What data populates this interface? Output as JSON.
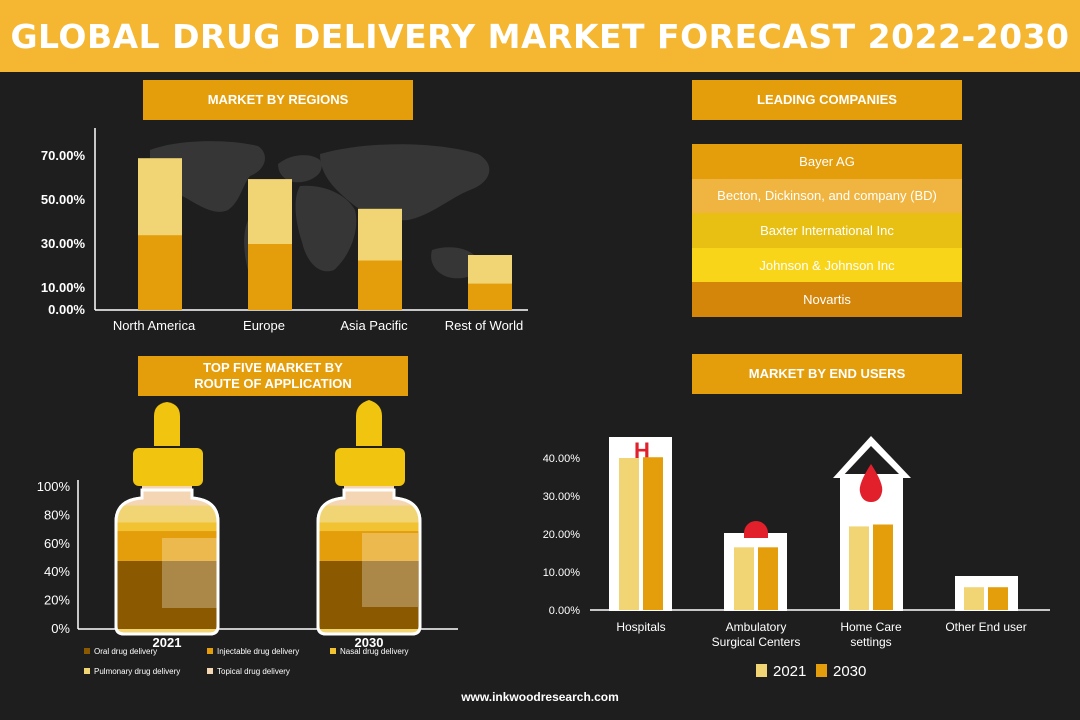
{
  "title": "GLOBAL DRUG DELIVERY MARKET FORECAST 2022-2030",
  "sections": {
    "regions": "MARKET BY REGIONS",
    "companies": "LEADING COMPANIES",
    "route_line1": "TOP FIVE MARKET BY",
    "route_line2": "ROUTE OF APPLICATION",
    "end_users": "MARKET BY END USERS"
  },
  "companies": [
    "Bayer AG",
    "Becton, Dickinson, and company (BD)",
    "Baxter International Inc",
    "Johnson & Johnson Inc",
    "Novartis"
  ],
  "colors": {
    "banner": "#f5b731",
    "section_title": "#e59e0b",
    "company_rows": [
      "#e59e0b",
      "#f0b540",
      "#e8c013",
      "#f9d51a",
      "#d4860a"
    ],
    "bar_dark": "#e59e0b",
    "bar_light": "#f1d574",
    "route_layers": [
      "#8b5a00",
      "#e59e0b",
      "#f1c232",
      "#f1d574",
      "#f5d6b4"
    ]
  },
  "footer": "www.inkwoodresearch.com",
  "chart_data": [
    {
      "type": "bar",
      "title": "MARKET BY REGIONS",
      "categories": [
        "North America",
        "Europe",
        "Asia Pacific",
        "Rest of World"
      ],
      "series": [
        {
          "values": [
            34,
            30,
            22.5,
            12
          ]
        },
        {
          "values": [
            69,
            59.5,
            46,
            25
          ]
        }
      ],
      "yticks": [
        "0.00%",
        "10.00%",
        "30.00%",
        "50.00%",
        "70.00%"
      ],
      "ytick_values": [
        0,
        10,
        30,
        50,
        70
      ],
      "ylim": [
        0,
        75
      ],
      "grid": false
    },
    {
      "type": "bar",
      "title": "TOP FIVE MARKET BY ROUTE OF APPLICATION",
      "stacked": true,
      "categories": [
        "2021",
        "2030"
      ],
      "series": [
        {
          "name": "Oral drug delivery",
          "values": [
            48,
            48
          ]
        },
        {
          "name": "Injectable drug delivery",
          "values": [
            21,
            21
          ]
        },
        {
          "name": "Nasal drug delivery",
          "values": [
            6,
            6
          ]
        },
        {
          "name": "Pulmonary drug delivery",
          "values": [
            12,
            12
          ]
        },
        {
          "name": "Topical drug delivery",
          "values": [
            13,
            13
          ]
        }
      ],
      "yticks": [
        "0%",
        "20%",
        "40%",
        "60%",
        "80%",
        "100%"
      ],
      "ytick_values": [
        0,
        20,
        40,
        60,
        80,
        100
      ],
      "ylim": [
        0,
        100
      ],
      "legend": "bottom"
    },
    {
      "type": "bar",
      "title": "MARKET BY END USERS",
      "categories": [
        "Hospitals",
        "Ambulatory Surgical Centers",
        "Home Care settings",
        "Other End user"
      ],
      "category_lines": [
        [
          "Hospitals"
        ],
        [
          "Ambulatory",
          "Surgical Centers"
        ],
        [
          "Home Care",
          "settings"
        ],
        [
          "Other End user"
        ]
      ],
      "series": [
        {
          "name": "2021",
          "values": [
            40,
            16.5,
            22,
            6
          ]
        },
        {
          "name": "2030",
          "values": [
            40.2,
            16.5,
            22.5,
            6
          ]
        }
      ],
      "yticks": [
        "0.00%",
        "10.00%",
        "20.00%",
        "30.00%",
        "40.00%"
      ],
      "ytick_values": [
        0,
        10,
        20,
        30,
        40
      ],
      "ylim": [
        0,
        40
      ],
      "legend": "bottom",
      "grid": false
    }
  ]
}
